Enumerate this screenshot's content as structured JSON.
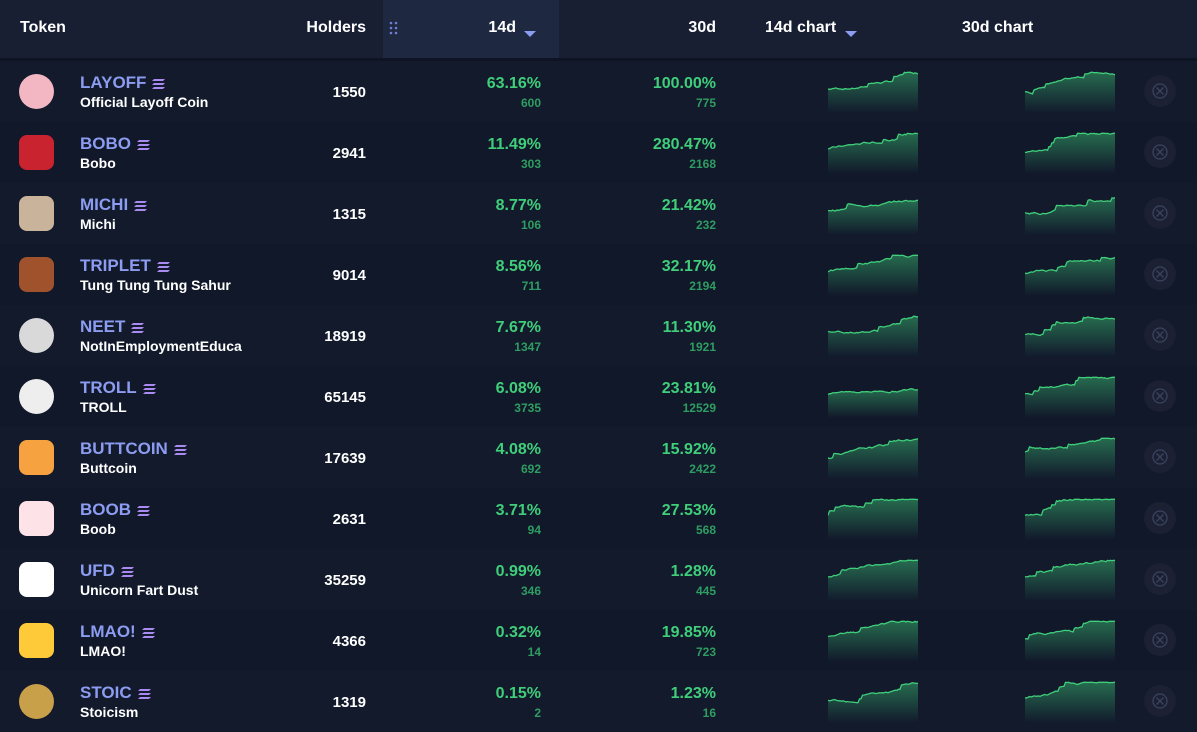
{
  "header": {
    "columns": [
      "Token",
      "Holders",
      "14d",
      "30d",
      "14d chart",
      "30d chart"
    ]
  },
  "table": {
    "rows": [
      {
        "symbol": "LAYOFF",
        "name": "Official Layoff Coin",
        "holders": "1550",
        "d14": "63.16%",
        "d14_count": "600",
        "d30": "100.00%",
        "d30_count": "775"
      },
      {
        "symbol": "BOBO",
        "name": "Bobo",
        "holders": "2941",
        "d14": "11.49%",
        "d14_count": "303",
        "d30": "280.47%",
        "d30_count": "2168"
      },
      {
        "symbol": "MICHI",
        "name": "Michi",
        "holders": "1315",
        "d14": "8.77%",
        "d14_count": "106",
        "d30": "21.42%",
        "d30_count": "232"
      },
      {
        "symbol": "TRIPLET",
        "name": "Tung Tung Tung Sahur",
        "holders": "9014",
        "d14": "8.56%",
        "d14_count": "711",
        "d30": "32.17%",
        "d30_count": "2194"
      },
      {
        "symbol": "NEET",
        "name": "NotInEmploymentEduca",
        "holders": "18919",
        "d14": "7.67%",
        "d14_count": "1347",
        "d30": "11.30%",
        "d30_count": "1921"
      },
      {
        "symbol": "TROLL",
        "name": "TROLL",
        "holders": "65145",
        "d14": "6.08%",
        "d14_count": "3735",
        "d30": "23.81%",
        "d30_count": "12529"
      },
      {
        "symbol": "BUTTCOIN",
        "name": "Buttcoin",
        "holders": "17639",
        "d14": "4.08%",
        "d14_count": "692",
        "d30": "15.92%",
        "d30_count": "2422"
      },
      {
        "symbol": "BOOB",
        "name": "Boob",
        "holders": "2631",
        "d14": "3.71%",
        "d14_count": "94",
        "d30": "27.53%",
        "d30_count": "568"
      },
      {
        "symbol": "UFD",
        "name": "Unicorn Fart Dust",
        "holders": "35259",
        "d14": "0.99%",
        "d14_count": "346",
        "d30": "1.28%",
        "d30_count": "445"
      },
      {
        "symbol": "LMAO!",
        "name": "LMAO!",
        "holders": "4366",
        "d14": "0.32%",
        "d14_count": "14",
        "d30": "19.85%",
        "d30_count": "723"
      },
      {
        "symbol": "STOIC",
        "name": "Stoicism",
        "holders": "1319",
        "d14": "0.15%",
        "d14_count": "2",
        "d30": "1.23%",
        "d30_count": "16"
      }
    ]
  }
}
